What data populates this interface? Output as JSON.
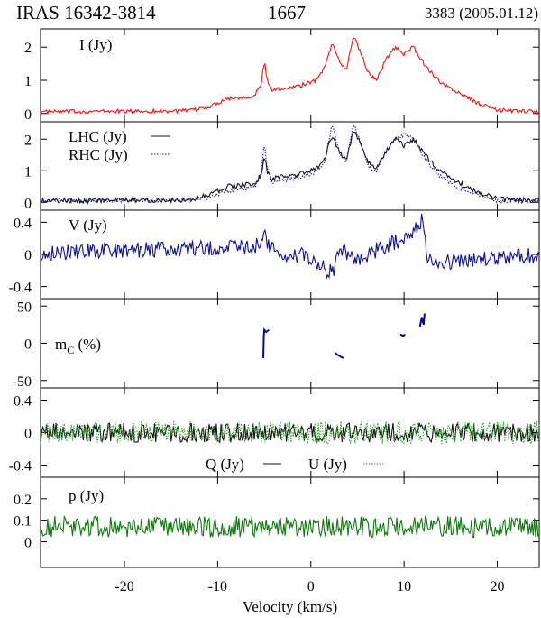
{
  "header": {
    "source": "IRAS 16342-3814",
    "line": "1667",
    "observation": "3383 (2005.01.12)"
  },
  "colors": {
    "I": "#ee1111",
    "LHC": "#111111",
    "RHC": "#1a1a99",
    "V": "#10148c",
    "mC": "#0a0a80",
    "Q": "#111111",
    "U": "#2ca02c",
    "p": "#117711"
  },
  "chart_data": {
    "type": "line",
    "xlabel": "Velocity (km/s)",
    "xlim": [
      -29,
      24.5
    ],
    "x_ticks": [
      -20,
      -10,
      0,
      10,
      20
    ],
    "x_tick_labels": [
      "-20",
      "-10",
      "0",
      "10",
      "20"
    ],
    "panels": [
      {
        "id": "I",
        "label": "I (Jy)",
        "ylim": [
          -0.25,
          2.55
        ],
        "y_ticks": [
          0,
          1,
          2
        ],
        "y_tick_labels": [
          "0",
          "1",
          "2"
        ],
        "series": [
          {
            "id": "I",
            "style": "solid",
            "color_key": "I",
            "baseline": 0.05,
            "noise": 0.06,
            "points": [
              [
                -29,
                0.05
              ],
              [
                -13,
                0.08
              ],
              [
                -11,
                0.2
              ],
              [
                -9,
                0.45
              ],
              [
                -7,
                0.5
              ],
              [
                -6,
                0.55
              ],
              [
                -5.3,
                0.9
              ],
              [
                -5,
                1.6
              ],
              [
                -4.7,
                1.0
              ],
              [
                -4.2,
                0.7
              ],
              [
                -3,
                0.75
              ],
              [
                -1,
                0.85
              ],
              [
                0.5,
                1.0
              ],
              [
                1.5,
                1.4
              ],
              [
                2.3,
                2.15
              ],
              [
                3,
                1.6
              ],
              [
                3.8,
                1.3
              ],
              [
                4.6,
                2.35
              ],
              [
                5.4,
                1.8
              ],
              [
                6.2,
                1.2
              ],
              [
                7,
                1.0
              ],
              [
                8,
                1.6
              ],
              [
                9,
                2.0
              ],
              [
                10,
                1.8
              ],
              [
                11,
                2.0
              ],
              [
                12,
                1.55
              ],
              [
                13,
                1.2
              ],
              [
                14,
                0.9
              ],
              [
                16,
                0.6
              ],
              [
                18,
                0.3
              ],
              [
                20,
                0.1
              ],
              [
                24.5,
                0.05
              ]
            ]
          }
        ]
      },
      {
        "id": "LR",
        "label": "",
        "ylim": [
          -0.25,
          2.55
        ],
        "y_ticks": [
          0,
          1,
          2
        ],
        "y_tick_labels": [
          "0",
          "1",
          "2"
        ],
        "series": [
          {
            "id": "LHC",
            "style": "solid",
            "color_key": "LHC",
            "baseline": 0.05,
            "noise": 0.08,
            "points": [
              [
                -29,
                0.05
              ],
              [
                -13,
                0.08
              ],
              [
                -11,
                0.25
              ],
              [
                -9,
                0.5
              ],
              [
                -7,
                0.55
              ],
              [
                -6,
                0.6
              ],
              [
                -5.3,
                0.9
              ],
              [
                -5,
                1.5
              ],
              [
                -4.7,
                1.0
              ],
              [
                -4.2,
                0.75
              ],
              [
                -3,
                0.8
              ],
              [
                -1,
                0.9
              ],
              [
                0.5,
                1.05
              ],
              [
                1.5,
                1.4
              ],
              [
                2.3,
                2.15
              ],
              [
                3,
                1.6
              ],
              [
                3.8,
                1.35
              ],
              [
                4.6,
                2.3
              ],
              [
                5.4,
                1.8
              ],
              [
                6.2,
                1.25
              ],
              [
                7,
                1.05
              ],
              [
                8,
                1.6
              ],
              [
                9,
                2.0
              ],
              [
                10,
                1.8
              ],
              [
                11,
                2.0
              ],
              [
                12,
                1.6
              ],
              [
                13,
                1.25
              ],
              [
                14,
                0.95
              ],
              [
                16,
                0.6
              ],
              [
                18,
                0.3
              ],
              [
                20,
                0.1
              ],
              [
                24.5,
                0.05
              ]
            ]
          },
          {
            "id": "RHC",
            "style": "dotted",
            "color_key": "RHC",
            "baseline": 0.05,
            "noise": 0.06,
            "points": [
              [
                -29,
                0.05
              ],
              [
                -13,
                0.06
              ],
              [
                -11,
                0.15
              ],
              [
                -9,
                0.35
              ],
              [
                -7,
                0.45
              ],
              [
                -6,
                0.5
              ],
              [
                -5.3,
                0.9
              ],
              [
                -5,
                1.9
              ],
              [
                -4.7,
                1.1
              ],
              [
                -4.2,
                0.65
              ],
              [
                -3,
                0.7
              ],
              [
                -1,
                0.8
              ],
              [
                0.5,
                0.95
              ],
              [
                1.5,
                1.3
              ],
              [
                2.3,
                2.5
              ],
              [
                3,
                1.6
              ],
              [
                3.8,
                1.25
              ],
              [
                4.6,
                2.5
              ],
              [
                5.4,
                1.8
              ],
              [
                6.2,
                1.15
              ],
              [
                7,
                0.95
              ],
              [
                8,
                1.6
              ],
              [
                9,
                2.0
              ],
              [
                10,
                2.15
              ],
              [
                11,
                2.0
              ],
              [
                12,
                1.5
              ],
              [
                13,
                1.1
              ],
              [
                14,
                0.8
              ],
              [
                16,
                0.45
              ],
              [
                18,
                0.2
              ],
              [
                20,
                0.05
              ],
              [
                24.5,
                0.02
              ]
            ]
          }
        ]
      },
      {
        "id": "V",
        "label": "V (Jy)",
        "ylim": [
          -0.55,
          0.55
        ],
        "y_ticks": [
          -0.4,
          0,
          0.4
        ],
        "y_tick_labels": [
          "-0.4",
          "0",
          "0.4"
        ],
        "series": [
          {
            "id": "V",
            "style": "solid",
            "color_key": "V",
            "baseline": 0,
            "noise": 0.1,
            "points": [
              [
                -29,
                0.02
              ],
              [
                -6,
                0.1
              ],
              [
                -5,
                0.25
              ],
              [
                -4.5,
                0.1
              ],
              [
                -3,
                -0.05
              ],
              [
                -1,
                0.0
              ],
              [
                1,
                -0.15
              ],
              [
                2.5,
                -0.25
              ],
              [
                3,
                0.1
              ],
              [
                5,
                -0.1
              ],
              [
                7,
                0.05
              ],
              [
                9,
                0.15
              ],
              [
                11,
                0.3
              ],
              [
                12,
                0.45
              ],
              [
                12.5,
                0.0
              ],
              [
                14,
                -0.1
              ],
              [
                24.5,
                0.0
              ]
            ]
          }
        ]
      },
      {
        "id": "mC",
        "label": "",
        "ylim": [
          -60,
          60
        ],
        "y_ticks": [
          -50,
          0,
          50
        ],
        "y_tick_labels": [
          "-50",
          "0",
          "50"
        ],
        "segments": [
          [
            [
              -5.1,
              -20
            ],
            [
              -5.05,
              10
            ],
            [
              -5,
              18
            ],
            [
              -4.8,
              15
            ],
            [
              -4.5,
              18
            ]
          ],
          [
            [
              2.6,
              -13
            ],
            [
              2.8,
              -15
            ],
            [
              3.2,
              -18
            ],
            [
              3.5,
              -20
            ]
          ],
          [
            [
              9.6,
              12
            ],
            [
              9.9,
              10
            ],
            [
              10.1,
              12
            ]
          ],
          [
            [
              11.7,
              22
            ],
            [
              11.9,
              35
            ],
            [
              12.1,
              25
            ],
            [
              12.2,
              40
            ]
          ]
        ]
      },
      {
        "id": "QU",
        "label": "",
        "ylim": [
          -0.55,
          0.55
        ],
        "y_ticks": [
          -0.4,
          0,
          0.4
        ],
        "y_tick_labels": [
          "-0.4",
          "0",
          "0.4"
        ],
        "series": [
          {
            "id": "Q",
            "style": "solid",
            "color_key": "Q",
            "baseline": 0,
            "noise": 0.12,
            "points": [
              [
                -29,
                0
              ],
              [
                24.5,
                0
              ]
            ]
          },
          {
            "id": "U",
            "style": "dotted",
            "color_key": "U",
            "baseline": 0,
            "noise": 0.14,
            "points": [
              [
                -29,
                0
              ],
              [
                24.5,
                0
              ]
            ]
          }
        ]
      },
      {
        "id": "p",
        "label": "p (Jy)",
        "ylim": [
          -0.12,
          0.3
        ],
        "y_ticks": [
          0,
          0.1,
          0.2
        ],
        "y_tick_labels": [
          "0",
          "0.1",
          "0.2"
        ],
        "series": [
          {
            "id": "p",
            "style": "solid",
            "color_key": "p",
            "baseline": 0.07,
            "noise": 0.05,
            "points": [
              [
                -29,
                0.07
              ],
              [
                24.5,
                0.07
              ]
            ]
          }
        ]
      }
    ],
    "labels": {
      "I": "I (Jy)",
      "LHC": "LHC (Jy)",
      "RHC": "RHC (Jy)",
      "V": "V (Jy)",
      "mC_main": "m",
      "mC_sub": "C",
      "mC_unit": " (%)",
      "Q": "Q (Jy)",
      "U": "U (Jy)",
      "p": "p (Jy)"
    }
  }
}
